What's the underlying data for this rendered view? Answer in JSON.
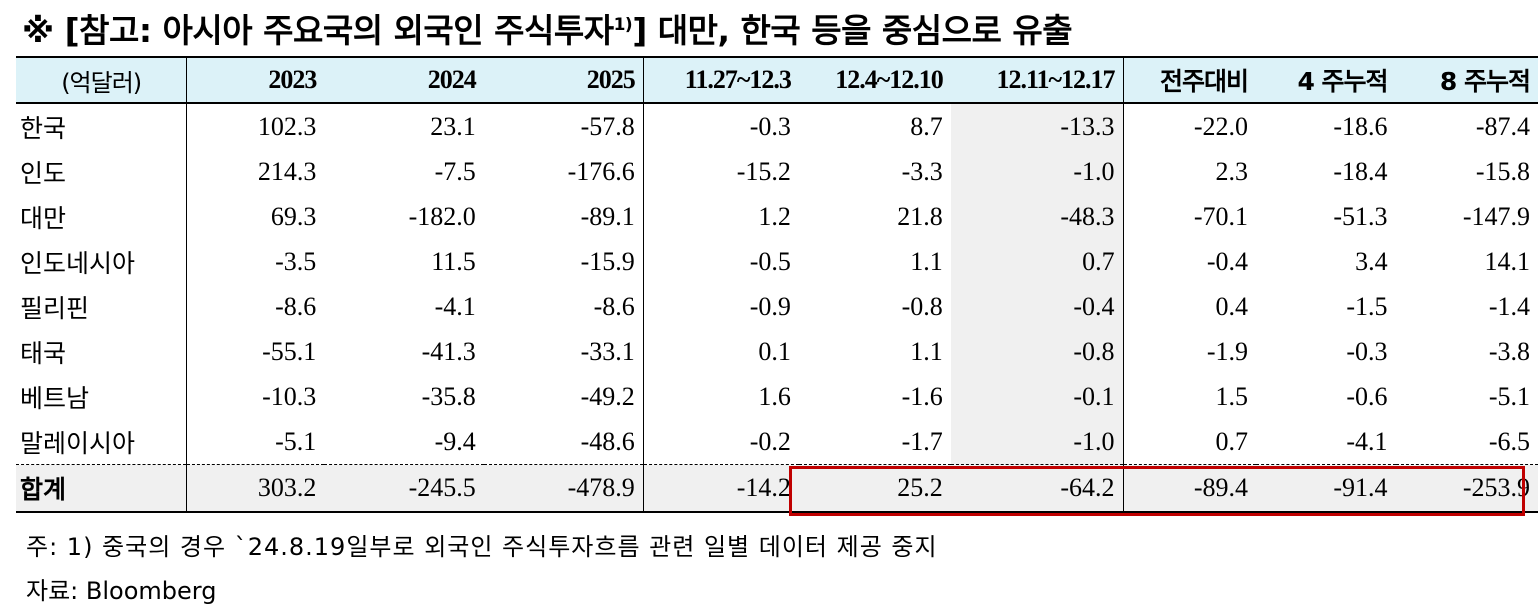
{
  "title": {
    "prefix": "※ [참고: 아시아 주요국의 외국인 주식투자",
    "sup": "1)",
    "suffix": "] 대만, 한국 등을 중심으로 유출"
  },
  "table": {
    "headers": [
      "(억달러)",
      "2023",
      "2024",
      "2025",
      "11.27~12.3",
      "12.4~12.10",
      "12.11~12.17",
      "전주대비",
      "4 주누적",
      "8 주누적"
    ],
    "rows": [
      {
        "label": "한국",
        "values": [
          "102.3",
          "23.1",
          "-57.8",
          "-0.3",
          "8.7",
          "-13.3",
          "-22.0",
          "-18.6",
          "-87.4"
        ]
      },
      {
        "label": "인도",
        "values": [
          "214.3",
          "-7.5",
          "-176.6",
          "-15.2",
          "-3.3",
          "-1.0",
          "2.3",
          "-18.4",
          "-15.8"
        ]
      },
      {
        "label": "대만",
        "values": [
          "69.3",
          "-182.0",
          "-89.1",
          "1.2",
          "21.8",
          "-48.3",
          "-70.1",
          "-51.3",
          "-147.9"
        ]
      },
      {
        "label": "인도네시아",
        "values": [
          "-3.5",
          "11.5",
          "-15.9",
          "-0.5",
          "1.1",
          "0.7",
          "-0.4",
          "3.4",
          "14.1"
        ]
      },
      {
        "label": "필리핀",
        "values": [
          "-8.6",
          "-4.1",
          "-8.6",
          "-0.9",
          "-0.8",
          "-0.4",
          "0.4",
          "-1.5",
          "-1.4"
        ]
      },
      {
        "label": "태국",
        "values": [
          "-55.1",
          "-41.3",
          "-33.1",
          "0.1",
          "1.1",
          "-0.8",
          "-1.9",
          "-0.3",
          "-3.8"
        ]
      },
      {
        "label": "베트남",
        "values": [
          "-10.3",
          "-35.8",
          "-49.2",
          "1.6",
          "-1.6",
          "-0.1",
          "1.5",
          "-0.6",
          "-5.1"
        ]
      },
      {
        "label": "말레이시아",
        "values": [
          "-5.1",
          "-9.4",
          "-48.6",
          "-0.2",
          "-1.7",
          "-1.0",
          "0.7",
          "-4.1",
          "-6.5"
        ]
      }
    ],
    "total": {
      "label": "합계",
      "values": [
        "303.2",
        "-245.5",
        "-478.9",
        "-14.2",
        "25.2",
        "-64.2",
        "-89.4",
        "-91.4",
        "-253.9"
      ]
    }
  },
  "notes": {
    "note1": "주: 1) 중국의 경우 `24.8.19일부로 외국인 주식투자흐름 관련 일별 데이터 제공 중지",
    "source": "자료: Bloomberg"
  },
  "colors": {
    "header_bg": "#dcf2f8",
    "highlight_border": "#c00000",
    "shade_bg": "#f0f0f0"
  }
}
